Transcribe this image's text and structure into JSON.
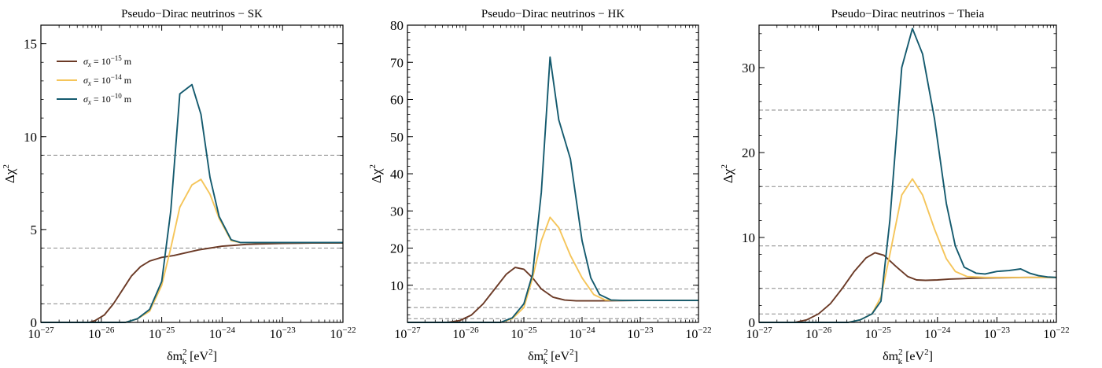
{
  "chart_data": [
    {
      "type": "line",
      "title": "Pseudo−Dirac neutrinos − SK",
      "xlabel": {
        "base": "δm",
        "sub": "k",
        "sup": "2",
        "unit": " [eV",
        "unit_sup": "2",
        "unit_end": "]"
      },
      "ylabel": {
        "base": "Δχ",
        "sup": "2"
      },
      "xscale": "log",
      "xlim": [
        1e-27,
        1e-22
      ],
      "ylim": [
        0,
        16
      ],
      "xticks": [
        {
          "value": 1e-27,
          "base": "10",
          "exp": "−27"
        },
        {
          "value": 1e-26,
          "base": "10",
          "exp": "−26"
        },
        {
          "value": 1e-25,
          "base": "10",
          "exp": "−25"
        },
        {
          "value": 1e-24,
          "base": "10",
          "exp": "−24"
        },
        {
          "value": 1e-23,
          "base": "10",
          "exp": "−23"
        },
        {
          "value": 1e-22,
          "base": "10",
          "exp": "−22"
        }
      ],
      "yticks": [
        {
          "value": 0,
          "label": "0"
        },
        {
          "value": 5,
          "label": "5"
        },
        {
          "value": 10,
          "label": "10"
        },
        {
          "value": 15,
          "label": "15"
        }
      ],
      "yminor_step": 1,
      "hlines": [
        1,
        4,
        9
      ],
      "legend": {
        "placement": "top-left",
        "entries": [
          {
            "series": 0,
            "sym": "σ",
            "sub": "x",
            "mid": " = 10",
            "exp": "−15",
            "unit": " m"
          },
          {
            "series": 1,
            "sym": "σ",
            "sub": "x",
            "mid": " = 10",
            "exp": "−14",
            "unit": " m"
          },
          {
            "series": 2,
            "sym": "σ",
            "sub": "x",
            "mid": " = 10",
            "exp": "−10",
            "unit": " m"
          }
        ]
      },
      "series": [
        {
          "color": "#6b3a26",
          "points": [
            [
              -27,
              0
            ],
            [
              -26.5,
              0
            ],
            [
              -26.2,
              0
            ],
            [
              -26.1,
              0.1
            ],
            [
              -25.95,
              0.4
            ],
            [
              -25.8,
              1.0
            ],
            [
              -25.6,
              2.0
            ],
            [
              -25.5,
              2.5
            ],
            [
              -25.35,
              3.0
            ],
            [
              -25.2,
              3.3
            ],
            [
              -25.0,
              3.5
            ],
            [
              -24.8,
              3.6
            ],
            [
              -24.6,
              3.75
            ],
            [
              -24.4,
              3.9
            ],
            [
              -24.2,
              4.0
            ],
            [
              -24.0,
              4.1
            ],
            [
              -23.8,
              4.15
            ],
            [
              -23.6,
              4.2
            ],
            [
              -23.4,
              4.22
            ],
            [
              -23.0,
              4.25
            ],
            [
              -22.5,
              4.27
            ],
            [
              -22,
              4.27
            ]
          ]
        },
        {
          "color": "#f5c55a",
          "points": [
            [
              -27,
              0
            ],
            [
              -25.6,
              0
            ],
            [
              -25.4,
              0.2
            ],
            [
              -25.2,
              0.6
            ],
            [
              -25.0,
              2.0
            ],
            [
              -24.85,
              4.0
            ],
            [
              -24.7,
              6.2
            ],
            [
              -24.5,
              7.4
            ],
            [
              -24.35,
              7.7
            ],
            [
              -24.2,
              6.9
            ],
            [
              -24.05,
              5.6
            ],
            [
              -23.85,
              4.4
            ],
            [
              -23.7,
              4.3
            ],
            [
              -23.5,
              4.3
            ],
            [
              -23.0,
              4.3
            ],
            [
              -22,
              4.3
            ]
          ]
        },
        {
          "color": "#145a6e",
          "points": [
            [
              -27,
              0
            ],
            [
              -25.6,
              0
            ],
            [
              -25.4,
              0.2
            ],
            [
              -25.2,
              0.7
            ],
            [
              -25.0,
              2.2
            ],
            [
              -24.85,
              6.0
            ],
            [
              -24.7,
              12.3
            ],
            [
              -24.5,
              12.8
            ],
            [
              -24.35,
              11.2
            ],
            [
              -24.2,
              7.8
            ],
            [
              -24.05,
              5.7
            ],
            [
              -23.85,
              4.45
            ],
            [
              -23.7,
              4.3
            ],
            [
              -23.5,
              4.3
            ],
            [
              -23.0,
              4.3
            ],
            [
              -22,
              4.3
            ]
          ]
        }
      ]
    },
    {
      "type": "line",
      "title": "Pseudo−Dirac neutrinos − HK",
      "xlabel": {
        "base": "δm",
        "sub": "k",
        "sup": "2",
        "unit": " [eV",
        "unit_sup": "2",
        "unit_end": "]"
      },
      "ylabel": {
        "base": "Δχ",
        "sup": "2"
      },
      "xscale": "log",
      "xlim": [
        1e-27,
        1e-22
      ],
      "ylim": [
        0,
        80
      ],
      "xticks": [
        {
          "value": 1e-27,
          "base": "10",
          "exp": "−27"
        },
        {
          "value": 1e-26,
          "base": "10",
          "exp": "−26"
        },
        {
          "value": 1e-25,
          "base": "10",
          "exp": "−25"
        },
        {
          "value": 1e-24,
          "base": "10",
          "exp": "−24"
        },
        {
          "value": 1e-23,
          "base": "10",
          "exp": "−23"
        },
        {
          "value": 1e-22,
          "base": "10",
          "exp": "−22"
        }
      ],
      "yticks": [
        {
          "value": 10,
          "label": "10"
        },
        {
          "value": 20,
          "label": "20"
        },
        {
          "value": 30,
          "label": "30"
        },
        {
          "value": 40,
          "label": "40"
        },
        {
          "value": 50,
          "label": "50"
        },
        {
          "value": 60,
          "label": "60"
        },
        {
          "value": 70,
          "label": "70"
        },
        {
          "value": 80,
          "label": "80"
        }
      ],
      "yminor_step": 2,
      "hlines": [
        1,
        4,
        9,
        16,
        25
      ],
      "series": [
        {
          "color": "#6b3a26",
          "points": [
            [
              -27,
              0
            ],
            [
              -26.3,
              0
            ],
            [
              -26.1,
              0.5
            ],
            [
              -25.9,
              2.0
            ],
            [
              -25.7,
              5.0
            ],
            [
              -25.5,
              9.0
            ],
            [
              -25.3,
              13.0
            ],
            [
              -25.15,
              14.8
            ],
            [
              -25.0,
              14.3
            ],
            [
              -24.85,
              12.0
            ],
            [
              -24.7,
              9.0
            ],
            [
              -24.5,
              6.8
            ],
            [
              -24.3,
              6.0
            ],
            [
              -24.1,
              5.8
            ],
            [
              -23.8,
              5.8
            ],
            [
              -23.5,
              5.85
            ],
            [
              -23.0,
              5.9
            ],
            [
              -22,
              5.9
            ]
          ]
        },
        {
          "color": "#f5c55a",
          "points": [
            [
              -27,
              0
            ],
            [
              -25.4,
              0
            ],
            [
              -25.2,
              1.0
            ],
            [
              -25.0,
              4.0
            ],
            [
              -24.85,
              12.0
            ],
            [
              -24.7,
              22.0
            ],
            [
              -24.55,
              28.3
            ],
            [
              -24.4,
              25.5
            ],
            [
              -24.2,
              18.0
            ],
            [
              -24.0,
              12.0
            ],
            [
              -23.8,
              7.5
            ],
            [
              -23.6,
              6.0
            ],
            [
              -23.4,
              5.9
            ],
            [
              -23.0,
              5.9
            ],
            [
              -22,
              5.9
            ]
          ]
        },
        {
          "color": "#145a6e",
          "points": [
            [
              -27,
              0
            ],
            [
              -25.4,
              0
            ],
            [
              -25.2,
              1.2
            ],
            [
              -25.0,
              5.0
            ],
            [
              -24.85,
              13.0
            ],
            [
              -24.7,
              35.0
            ],
            [
              -24.55,
              71.4
            ],
            [
              -24.4,
              54.5
            ],
            [
              -24.2,
              44.0
            ],
            [
              -24.0,
              22.0
            ],
            [
              -23.85,
              12.0
            ],
            [
              -23.7,
              7.5
            ],
            [
              -23.5,
              6.0
            ],
            [
              -23.3,
              5.9
            ],
            [
              -23.0,
              5.9
            ],
            [
              -22,
              5.9
            ]
          ]
        }
      ]
    },
    {
      "type": "line",
      "title": "Pseudo−Dirac neutrinos − Theia",
      "xlabel": {
        "base": "δm",
        "sub": "k",
        "sup": "2",
        "unit": " [eV",
        "unit_sup": "2",
        "unit_end": "]"
      },
      "ylabel": {
        "base": "Δχ",
        "sup": "2"
      },
      "xscale": "log",
      "xlim": [
        1e-27,
        1e-22
      ],
      "ylim": [
        0,
        35
      ],
      "xticks": [
        {
          "value": 1e-27,
          "base": "10",
          "exp": "−27"
        },
        {
          "value": 1e-26,
          "base": "10",
          "exp": "−26"
        },
        {
          "value": 1e-25,
          "base": "10",
          "exp": "−25"
        },
        {
          "value": 1e-24,
          "base": "10",
          "exp": "−24"
        },
        {
          "value": 1e-23,
          "base": "10",
          "exp": "−23"
        },
        {
          "value": 1e-22,
          "base": "10",
          "exp": "−22"
        }
      ],
      "yticks": [
        {
          "value": 0,
          "label": "0"
        },
        {
          "value": 10,
          "label": "10"
        },
        {
          "value": 20,
          "label": "20"
        },
        {
          "value": 30,
          "label": "30"
        }
      ],
      "yminor_step": 2,
      "hlines": [
        1,
        4,
        9,
        16,
        25
      ],
      "series": [
        {
          "color": "#6b3a26",
          "points": [
            [
              -27,
              0
            ],
            [
              -26.4,
              0
            ],
            [
              -26.2,
              0.3
            ],
            [
              -26.0,
              1.0
            ],
            [
              -25.8,
              2.2
            ],
            [
              -25.6,
              4.0
            ],
            [
              -25.4,
              6.0
            ],
            [
              -25.2,
              7.6
            ],
            [
              -25.05,
              8.2
            ],
            [
              -24.9,
              7.9
            ],
            [
              -24.7,
              6.6
            ],
            [
              -24.5,
              5.4
            ],
            [
              -24.35,
              5.0
            ],
            [
              -24.2,
              4.95
            ],
            [
              -24.0,
              5.0
            ],
            [
              -23.8,
              5.1
            ],
            [
              -23.6,
              5.15
            ],
            [
              -23.4,
              5.2
            ],
            [
              -23.0,
              5.25
            ],
            [
              -22.5,
              5.3
            ],
            [
              -22,
              5.3
            ]
          ]
        },
        {
          "color": "#f5c55a",
          "points": [
            [
              -27,
              0
            ],
            [
              -25.5,
              0
            ],
            [
              -25.3,
              0.3
            ],
            [
              -25.1,
              1.0
            ],
            [
              -24.95,
              3.0
            ],
            [
              -24.8,
              8.0
            ],
            [
              -24.6,
              15.0
            ],
            [
              -24.42,
              16.9
            ],
            [
              -24.25,
              15.0
            ],
            [
              -24.05,
              11.0
            ],
            [
              -23.85,
              7.5
            ],
            [
              -23.7,
              6.0
            ],
            [
              -23.5,
              5.4
            ],
            [
              -23.2,
              5.3
            ],
            [
              -22.8,
              5.3
            ],
            [
              -22,
              5.3
            ]
          ]
        },
        {
          "color": "#145a6e",
          "points": [
            [
              -27,
              0
            ],
            [
              -25.5,
              0
            ],
            [
              -25.3,
              0.3
            ],
            [
              -25.1,
              1.0
            ],
            [
              -24.95,
              2.5
            ],
            [
              -24.8,
              12.0
            ],
            [
              -24.6,
              30.0
            ],
            [
              -24.42,
              34.6
            ],
            [
              -24.25,
              31.6
            ],
            [
              -24.05,
              24.0
            ],
            [
              -23.85,
              14.0
            ],
            [
              -23.7,
              9.0
            ],
            [
              -23.55,
              6.5
            ],
            [
              -23.35,
              5.8
            ],
            [
              -23.2,
              5.7
            ],
            [
              -23.0,
              6.0
            ],
            [
              -22.8,
              6.1
            ],
            [
              -22.6,
              6.3
            ],
            [
              -22.45,
              5.8
            ],
            [
              -22.3,
              5.5
            ],
            [
              -22.15,
              5.35
            ],
            [
              -22,
              5.3
            ]
          ]
        }
      ]
    }
  ]
}
